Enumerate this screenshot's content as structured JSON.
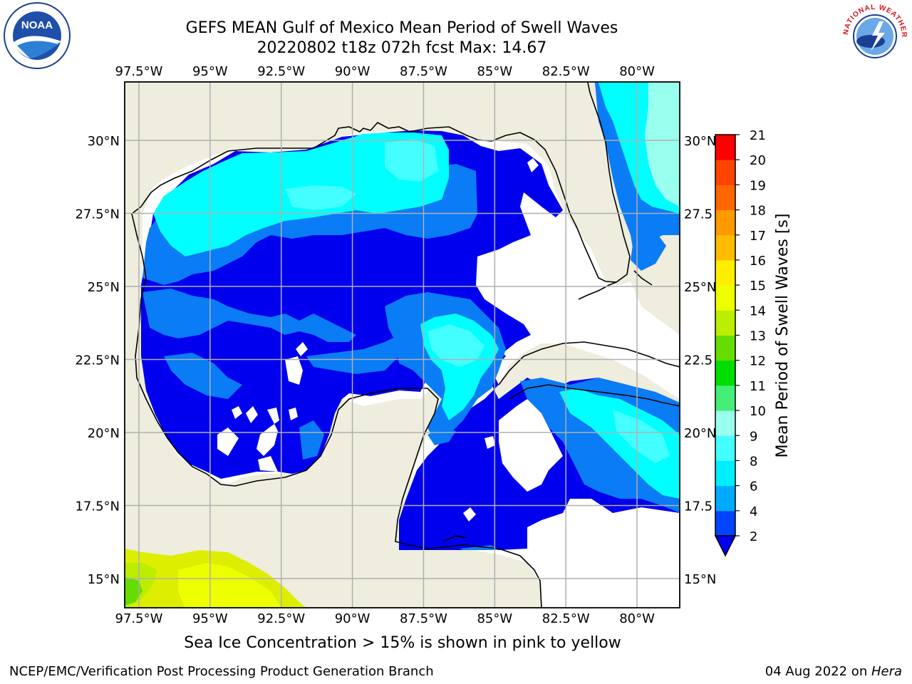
{
  "header": {
    "title": "GEFS MEAN Gulf of Mexico Mean Period of Swell Waves",
    "subtitle": "20220802 t18z 072h fcst   Max: 14.67"
  },
  "map": {
    "region": "Gulf of Mexico",
    "lon_ticks": [
      "97.5°W",
      "95°W",
      "92.5°W",
      "90°W",
      "87.5°W",
      "85°W",
      "82.5°W",
      "80°W"
    ],
    "lat_ticks_left": [
      "30°N",
      "27.5°N",
      "25°N",
      "22.5°N",
      "20°N",
      "17.5°N",
      "15°N"
    ],
    "lat_ticks_right": [
      "30°N",
      "27.5",
      "25°N",
      "22.5",
      "20°N",
      "17.5",
      "15°N"
    ],
    "lon_range": [
      -98,
      -78.5
    ],
    "lat_range": [
      14,
      32
    ],
    "land_color": "#eeedde",
    "ocean_missing_color": "#ffffff"
  },
  "colorbar": {
    "label": "Mean Period of Swell Waves [s]",
    "ticks": [
      "2",
      "4",
      "6",
      "8",
      "9",
      "10",
      "11",
      "12",
      "13",
      "14",
      "15",
      "16",
      "17",
      "18",
      "19",
      "20",
      "21"
    ],
    "bins": [
      {
        "from": 2,
        "to": 4,
        "color": "#0044ff"
      },
      {
        "from": 4,
        "to": 6,
        "color": "#00aaff"
      },
      {
        "from": 6,
        "to": 8,
        "color": "#00eeff"
      },
      {
        "from": 8,
        "to": 9,
        "color": "#44ffff"
      },
      {
        "from": 9,
        "to": 10,
        "color": "#99ffee"
      },
      {
        "from": 10,
        "to": 11,
        "color": "#44ee77"
      },
      {
        "from": 11,
        "to": 12,
        "color": "#00dd00"
      },
      {
        "from": 12,
        "to": 13,
        "color": "#66dd00"
      },
      {
        "from": 13,
        "to": 14,
        "color": "#bbee00"
      },
      {
        "from": 14,
        "to": 15,
        "color": "#eeff00"
      },
      {
        "from": 15,
        "to": 16,
        "color": "#ffee00"
      },
      {
        "from": 16,
        "to": 17,
        "color": "#ffbb00"
      },
      {
        "from": 17,
        "to": 18,
        "color": "#ff9900"
      },
      {
        "from": 18,
        "to": 19,
        "color": "#ff6600"
      },
      {
        "from": 19,
        "to": 20,
        "color": "#ff4400"
      },
      {
        "from": 20,
        "to": 21,
        "color": "#ff0000"
      }
    ],
    "under_color": "#0000ee"
  },
  "note": "Sea Ice Concentration > 15% is shown in pink to yellow",
  "footer": {
    "left": "NCEP/EMC/Verification Post Processing Product Generation Branch",
    "right_prefix": "04 Aug 2022 on ",
    "right_host": "Hera"
  },
  "logos": {
    "left_text": "NOAA",
    "right_text": "NATIONAL WEATHER SERVICE"
  }
}
